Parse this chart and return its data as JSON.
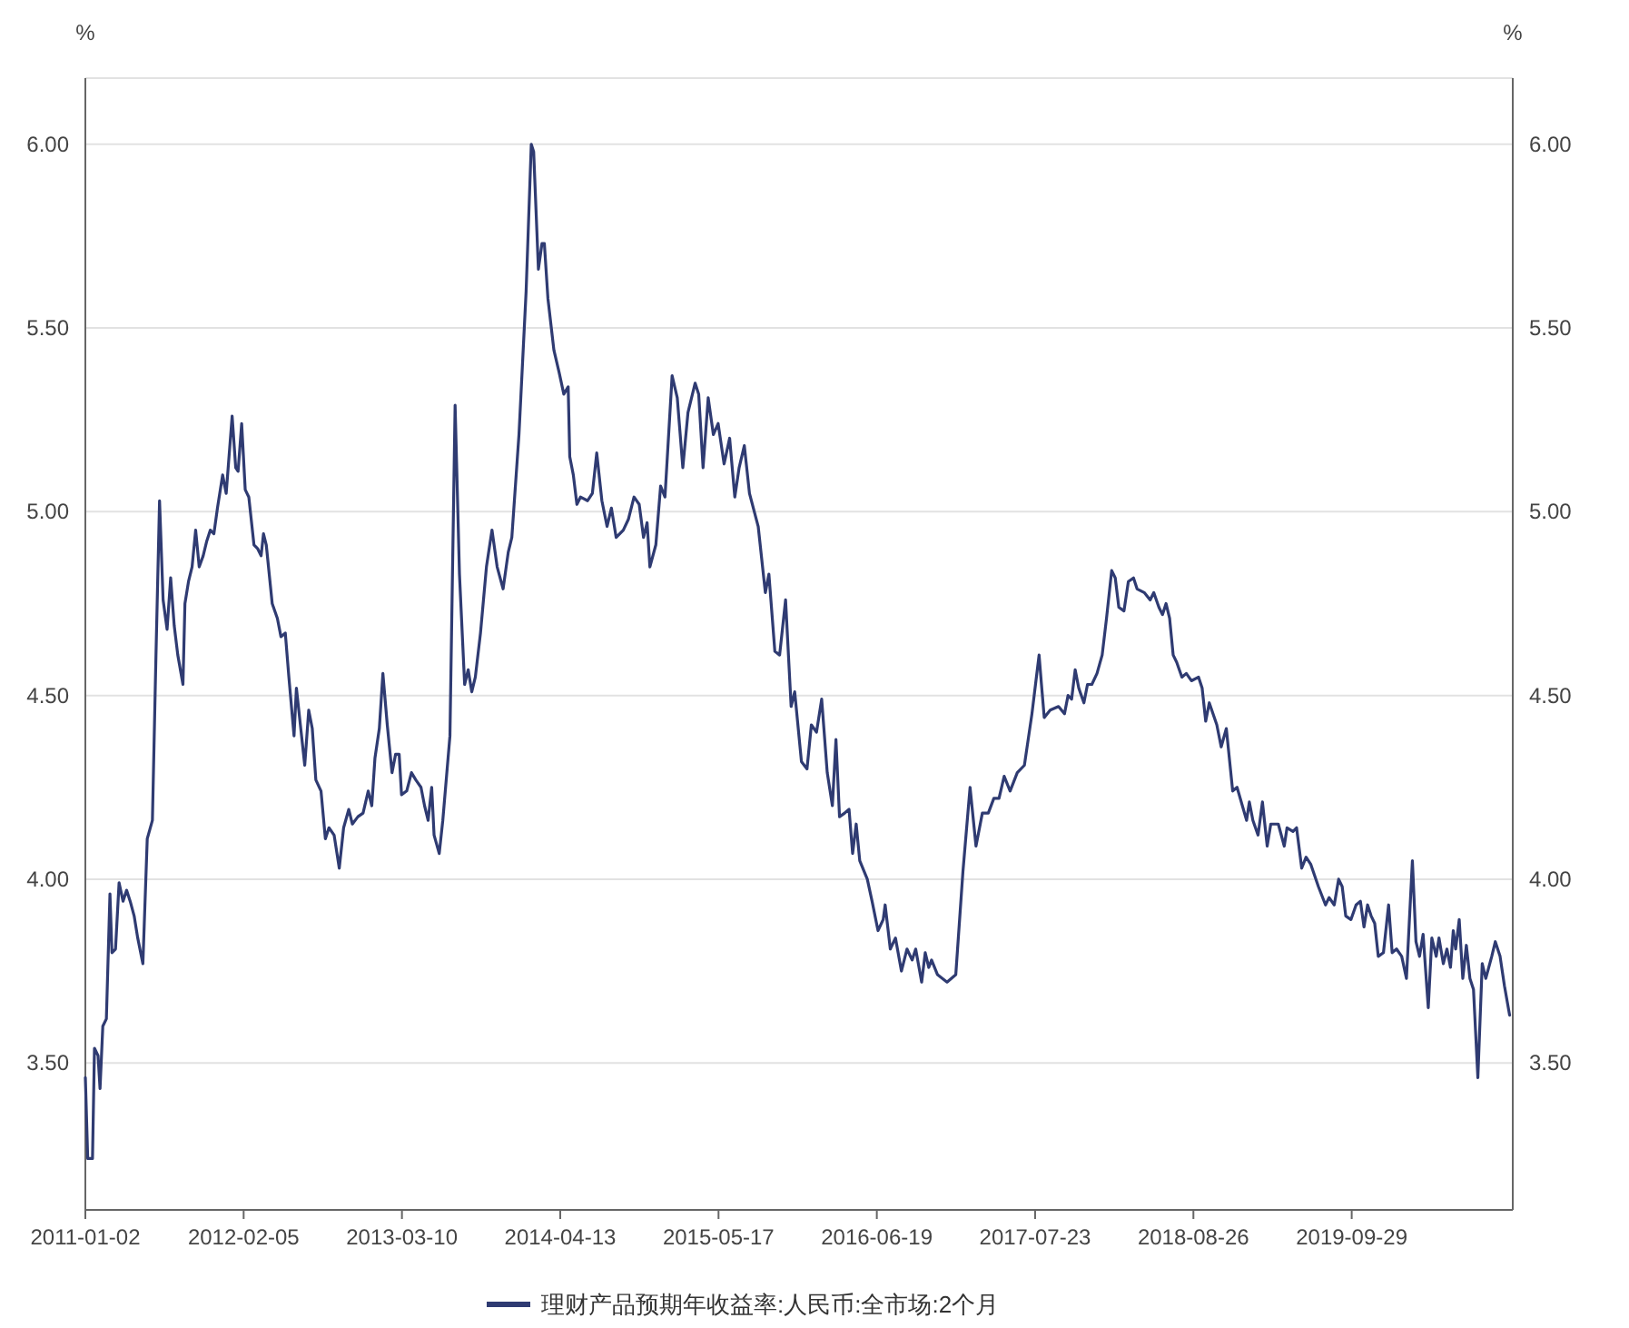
{
  "chart_data": {
    "type": "line",
    "ylabel": "%",
    "y2label": "%",
    "xlim": [
      "2011-01-02",
      "2020-11-08"
    ],
    "xticks": [
      "2011-01-02",
      "2012-02-05",
      "2013-03-10",
      "2014-04-13",
      "2015-05-17",
      "2016-06-19",
      "2017-07-23",
      "2018-08-26",
      "2019-09-29"
    ],
    "ylim": [
      3.1,
      6.18
    ],
    "yticks": [
      {
        "value": 3.5,
        "label": "3.50"
      },
      {
        "value": 4,
        "label": "4.00"
      },
      {
        "value": 4.5,
        "label": "4.50"
      },
      {
        "value": 5,
        "label": "5.00"
      },
      {
        "value": 5.5,
        "label": "5.50"
      },
      {
        "value": 6,
        "label": "6.00"
      }
    ],
    "y2lim": [
      3.1,
      6.18
    ],
    "y2ticks": [
      {
        "value": 3.5,
        "label": "3.50"
      },
      {
        "value": 4,
        "label": "4.00"
      },
      {
        "value": 4.5,
        "label": "4.50"
      },
      {
        "value": 5,
        "label": "5.00"
      },
      {
        "value": 5.5,
        "label": "5.50"
      },
      {
        "value": 6,
        "label": "6.00"
      }
    ],
    "grid": "y",
    "legend": "bottom",
    "marker": "none",
    "line_style": "solid",
    "x": [
      "2011-01-02",
      "2011-01-08",
      "2011-01-20",
      "2011-01-25",
      "2011-02-03",
      "2011-02-08",
      "2011-02-15",
      "2011-02-24",
      "2011-03-05",
      "2011-03-10",
      "2011-03-19",
      "2011-03-28",
      "2011-04-07",
      "2011-04-16",
      "2011-04-25",
      "2011-05-05",
      "2011-05-14",
      "2011-05-27",
      "2011-06-07",
      "2011-06-20",
      "2011-06-29",
      "2011-07-08",
      "2011-07-17",
      "2011-07-27",
      "2011-08-05",
      "2011-08-14",
      "2011-08-23",
      "2011-09-05",
      "2011-09-10",
      "2011-09-19",
      "2011-09-28",
      "2011-10-07",
      "2011-10-16",
      "2011-10-26",
      "2011-11-04",
      "2011-11-13",
      "2011-11-22",
      "2011-12-01",
      "2011-12-14",
      "2011-12-23",
      "2012-01-07",
      "2012-01-16",
      "2012-01-22",
      "2012-01-31",
      "2012-02-09",
      "2012-02-18",
      "2012-03-02",
      "2012-03-11",
      "2012-03-20",
      "2012-03-26",
      "2012-04-02",
      "2012-04-17",
      "2012-04-30",
      "2012-05-09",
      "2012-05-20",
      "2012-05-29",
      "2012-06-11",
      "2012-06-17",
      "2012-06-29",
      "2012-07-08",
      "2012-07-18",
      "2012-07-27",
      "2012-08-05",
      "2012-08-18",
      "2012-08-29",
      "2012-09-07",
      "2012-09-20",
      "2012-10-03",
      "2012-10-14",
      "2012-10-27",
      "2012-11-05",
      "2012-11-19",
      "2012-12-02",
      "2012-12-15",
      "2012-12-24",
      "2013-01-01",
      "2013-01-12",
      "2013-01-21",
      "2013-02-01",
      "2013-02-13",
      "2013-02-22",
      "2013-03-03",
      "2013-03-09",
      "2013-03-22",
      "2013-04-03",
      "2013-04-14",
      "2013-04-27",
      "2013-05-06",
      "2013-05-15",
      "2013-05-24",
      "2013-05-30",
      "2013-06-12",
      "2013-06-21",
      "2013-07-09",
      "2013-07-22",
      "2013-08-02",
      "2013-08-15",
      "2013-08-24",
      "2013-09-02",
      "2013-09-11",
      "2013-09-24",
      "2013-10-09",
      "2013-10-23",
      "2013-11-05",
      "2013-11-20",
      "2013-12-03",
      "2013-12-12",
      "2013-12-30",
      "2014-01-17",
      "2014-01-30",
      "2014-02-05",
      "2014-02-17",
      "2014-02-26",
      "2014-03-04",
      "2014-03-13",
      "2014-03-28",
      "2014-04-10",
      "2014-04-22",
      "2014-05-03",
      "2014-05-07",
      "2014-05-16",
      "2014-05-25",
      "2014-06-03",
      "2014-06-21",
      "2014-07-03",
      "2014-07-14",
      "2014-07-27",
      "2014-08-09",
      "2014-08-20",
      "2014-09-01",
      "2014-09-19",
      "2014-10-02",
      "2014-10-16",
      "2014-10-29",
      "2014-11-09",
      "2014-11-18",
      "2014-11-25",
      "2014-12-10",
      "2014-12-22",
      "2015-01-02",
      "2015-01-20",
      "2015-02-02",
      "2015-02-16",
      "2015-03-01",
      "2015-03-19",
      "2015-03-28",
      "2015-04-08",
      "2015-04-21",
      "2015-05-04",
      "2015-05-16",
      "2015-05-31",
      "2015-06-14",
      "2015-06-27",
      "2015-07-08",
      "2015-07-21",
      "2015-08-03",
      "2015-08-25",
      "2015-09-12",
      "2015-09-21",
      "2015-10-06",
      "2015-10-18",
      "2015-11-02",
      "2015-11-16",
      "2015-11-25",
      "2015-12-12",
      "2015-12-26",
      "2016-01-06",
      "2016-01-19",
      "2016-02-01",
      "2016-02-15",
      "2016-02-28",
      "2016-03-08",
      "2016-03-17",
      "2016-03-30",
      "2016-04-10",
      "2016-04-19",
      "2016-04-28",
      "2016-05-07",
      "2016-05-26",
      "2016-06-07",
      "2016-06-22",
      "2016-07-05",
      "2016-07-10",
      "2016-07-23",
      "2016-08-05",
      "2016-08-20",
      "2016-09-03",
      "2016-09-16",
      "2016-09-25",
      "2016-10-10",
      "2016-10-19",
      "2016-10-28",
      "2016-11-04",
      "2016-11-19",
      "2016-12-13",
      "2017-01-04",
      "2017-01-22",
      "2017-02-09",
      "2017-02-24",
      "2017-03-12",
      "2017-03-27",
      "2017-04-10",
      "2017-04-23",
      "2017-05-06",
      "2017-05-21",
      "2017-06-08",
      "2017-06-26",
      "2017-07-15",
      "2017-07-24",
      "2017-08-02",
      "2017-08-08",
      "2017-08-15",
      "2017-08-30",
      "2017-09-20",
      "2017-10-05",
      "2017-10-14",
      "2017-10-23",
      "2017-11-01",
      "2017-11-10",
      "2017-11-23",
      "2017-12-02",
      "2017-12-13",
      "2017-12-26",
      "2018-01-08",
      "2018-01-19",
      "2018-02-01",
      "2018-02-10",
      "2018-02-19",
      "2018-03-04",
      "2018-03-15",
      "2018-03-28",
      "2018-04-06",
      "2018-04-24",
      "2018-05-09",
      "2018-05-18",
      "2018-05-31",
      "2018-06-09",
      "2018-06-18",
      "2018-06-27",
      "2018-07-06",
      "2018-07-15",
      "2018-07-28",
      "2018-08-08",
      "2018-08-21",
      "2018-09-08",
      "2018-09-17",
      "2018-09-26",
      "2018-10-05",
      "2018-10-24",
      "2018-11-04",
      "2018-11-17",
      "2018-12-03",
      "2018-12-14",
      "2019-01-07",
      "2019-01-14",
      "2019-01-23",
      "2019-02-05",
      "2019-02-16",
      "2019-02-28",
      "2019-03-09",
      "2019-03-28",
      "2019-04-12",
      "2019-04-19",
      "2019-05-04",
      "2019-05-13",
      "2019-05-26",
      "2019-06-06",
      "2019-06-18",
      "2019-07-07",
      "2019-07-25",
      "2019-08-03",
      "2019-08-16",
      "2019-08-27",
      "2019-09-05",
      "2019-09-14",
      "2019-09-27",
      "2019-10-10",
      "2019-10-21",
      "2019-10-30",
      "2019-11-08",
      "2019-11-17",
      "2019-11-26",
      "2019-12-05",
      "2019-12-18",
      "2019-12-31",
      "2020-01-09",
      "2020-01-20",
      "2020-02-02",
      "2020-02-14",
      "2020-02-29",
      "2020-03-09",
      "2020-03-18",
      "2020-03-27",
      "2020-04-09",
      "2020-04-18",
      "2020-04-29",
      "2020-05-06",
      "2020-05-17",
      "2020-05-26",
      "2020-06-04",
      "2020-06-11",
      "2020-06-17",
      "2020-06-26",
      "2020-07-05",
      "2020-07-14",
      "2020-07-23",
      "2020-08-01",
      "2020-08-12",
      "2020-08-23",
      "2020-09-01",
      "2020-09-16",
      "2020-09-25",
      "2020-10-07",
      "2020-10-18",
      "2020-10-31"
    ],
    "series": [
      {
        "name": "理财产品预期年收益率:人民币:全市场:2个月",
        "color": "#2f3b72",
        "values": [
          3.46,
          3.24,
          3.24,
          3.54,
          3.52,
          3.43,
          3.6,
          3.62,
          3.96,
          3.8,
          3.81,
          3.99,
          3.94,
          3.97,
          3.94,
          3.9,
          3.84,
          3.77,
          4.11,
          4.16,
          4.61,
          5.03,
          4.76,
          4.68,
          4.82,
          4.69,
          4.61,
          4.53,
          4.75,
          4.81,
          4.85,
          4.95,
          4.85,
          4.88,
          4.92,
          4.95,
          4.94,
          5.01,
          5.1,
          5.05,
          5.26,
          5.12,
          5.11,
          5.24,
          5.06,
          5.04,
          4.91,
          4.9,
          4.88,
          4.94,
          4.91,
          4.75,
          4.71,
          4.66,
          4.67,
          4.55,
          4.39,
          4.52,
          4.4,
          4.31,
          4.46,
          4.41,
          4.27,
          4.24,
          4.11,
          4.14,
          4.12,
          4.03,
          4.14,
          4.19,
          4.15,
          4.17,
          4.18,
          4.24,
          4.2,
          4.33,
          4.41,
          4.56,
          4.42,
          4.29,
          4.34,
          4.34,
          4.23,
          4.24,
          4.29,
          4.27,
          4.25,
          4.2,
          4.16,
          4.25,
          4.12,
          4.07,
          4.16,
          4.39,
          5.29,
          4.83,
          4.53,
          4.57,
          4.51,
          4.55,
          4.67,
          4.85,
          4.95,
          4.85,
          4.79,
          4.89,
          4.93,
          5.21,
          5.6,
          6.0,
          5.98,
          5.66,
          5.73,
          5.73,
          5.58,
          5.44,
          5.38,
          5.32,
          5.34,
          5.15,
          5.1,
          5.02,
          5.04,
          5.03,
          5.05,
          5.16,
          5.03,
          4.96,
          5.01,
          4.93,
          4.95,
          4.98,
          5.04,
          5.02,
          4.93,
          4.97,
          4.85,
          4.91,
          5.07,
          5.04,
          5.37,
          5.31,
          5.12,
          5.27,
          5.35,
          5.32,
          5.12,
          5.31,
          5.21,
          5.24,
          5.13,
          5.2,
          5.04,
          5.12,
          5.18,
          5.05,
          4.96,
          4.78,
          4.83,
          4.62,
          4.61,
          4.76,
          4.47,
          4.51,
          4.32,
          4.3,
          4.42,
          4.4,
          4.49,
          4.29,
          4.2,
          4.38,
          4.17,
          4.18,
          4.19,
          4.07,
          4.15,
          4.05,
          4.0,
          3.94,
          3.86,
          3.89,
          3.93,
          3.81,
          3.84,
          3.75,
          3.81,
          3.78,
          3.81,
          3.72,
          3.8,
          3.76,
          3.78,
          3.74,
          3.72,
          3.74,
          4.02,
          4.25,
          4.09,
          4.18,
          4.18,
          4.22,
          4.22,
          4.28,
          4.24,
          4.29,
          4.31,
          4.45,
          4.53,
          4.61,
          4.53,
          4.44,
          4.46,
          4.47,
          4.45,
          4.5,
          4.49,
          4.57,
          4.52,
          4.48,
          4.53,
          4.53,
          4.56,
          4.61,
          4.71,
          4.84,
          4.82,
          4.74,
          4.73,
          4.81,
          4.82,
          4.79,
          4.78,
          4.76,
          4.78,
          4.74,
          4.72,
          4.75,
          4.71,
          4.61,
          4.59,
          4.55,
          4.56,
          4.54,
          4.55,
          4.52,
          4.43,
          4.48,
          4.42,
          4.36,
          4.41,
          4.24,
          4.25,
          4.16,
          4.21,
          4.16,
          4.12,
          4.21,
          4.09,
          4.15,
          4.15,
          4.09,
          4.14,
          4.13,
          4.14,
          4.03,
          4.06,
          4.04,
          3.98,
          3.93,
          3.95,
          3.93,
          4.0,
          3.98,
          3.9,
          3.89,
          3.93,
          3.94,
          3.87,
          3.93,
          3.9,
          3.88,
          3.79,
          3.8,
          3.93,
          3.8,
          3.81,
          3.79,
          3.73,
          4.05,
          3.83,
          3.79,
          3.85,
          3.65,
          3.84,
          3.79,
          3.84,
          3.77,
          3.81,
          3.76,
          3.86,
          3.81,
          3.89,
          3.73,
          3.82,
          3.73,
          3.7,
          3.46,
          3.77,
          3.73,
          3.79,
          3.83,
          3.79,
          3.71,
          3.63
        ]
      }
    ]
  }
}
